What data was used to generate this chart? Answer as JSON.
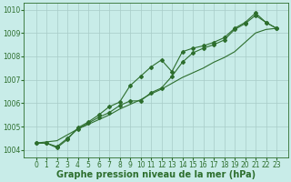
{
  "xlabel": "Graphe pression niveau de la mer (hPa)",
  "background_color": "#c8ece8",
  "grid_color": "#a8ccc8",
  "line_color": "#2d6e2d",
  "x_values": [
    0,
    1,
    2,
    3,
    4,
    5,
    6,
    7,
    8,
    9,
    10,
    11,
    12,
    13,
    14,
    15,
    16,
    17,
    18,
    19,
    20,
    21,
    22,
    23
  ],
  "line_straight": [
    1004.3,
    1004.35,
    1004.4,
    1004.65,
    1004.9,
    1005.1,
    1005.3,
    1005.5,
    1005.75,
    1005.95,
    1006.15,
    1006.4,
    1006.6,
    1006.85,
    1007.1,
    1007.3,
    1007.5,
    1007.75,
    1007.95,
    1008.2,
    1008.6,
    1009.0,
    1009.15,
    1009.2
  ],
  "line_upper": [
    1004.3,
    1004.3,
    1004.15,
    1004.5,
    1004.9,
    1005.15,
    1005.4,
    1005.6,
    1005.9,
    1006.1,
    1006.1,
    1006.45,
    1006.65,
    1007.15,
    1007.75,
    1008.15,
    1008.35,
    1008.5,
    1008.7,
    1009.15,
    1009.4,
    1009.75,
    1009.45,
    1009.2
  ],
  "line_top": [
    1004.3,
    1004.3,
    1004.1,
    1004.45,
    1004.95,
    1005.2,
    1005.5,
    1005.85,
    1006.05,
    1006.75,
    1007.15,
    1007.55,
    1007.85,
    1007.35,
    1008.2,
    1008.35,
    1008.45,
    1008.6,
    1008.8,
    1009.2,
    1009.45,
    1009.85,
    1009.45,
    1009.2
  ],
  "ylim": [
    1003.7,
    1010.3
  ],
  "yticks": [
    1004,
    1005,
    1006,
    1007,
    1008,
    1009,
    1010
  ],
  "xticks": [
    0,
    1,
    2,
    3,
    4,
    5,
    6,
    7,
    8,
    9,
    10,
    11,
    12,
    13,
    14,
    15,
    16,
    17,
    18,
    19,
    20,
    21,
    22,
    23
  ],
  "tick_fontsize": 5.5,
  "xlabel_fontsize": 7,
  "marker": "D",
  "marker_size": 2.0,
  "linewidth": 0.8
}
